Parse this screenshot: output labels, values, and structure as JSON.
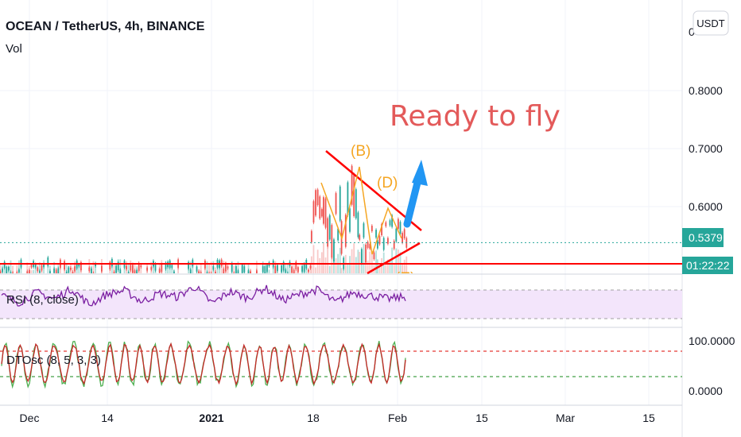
{
  "header": {
    "title": "OCEAN / TetherUS, 4h, BINANCE",
    "volume_label": "Vol",
    "currency_button": "USDT",
    "partial_tick": "0"
  },
  "annotation": {
    "text": "Ready to fly",
    "wave_labels": [
      "(B)",
      "(D)",
      "(E)"
    ]
  },
  "price_tags": {
    "last_price": "0.5379",
    "countdown": "01:22:22",
    "last_price_color": "#26a69a"
  },
  "colors": {
    "candle_up": "#26a69a",
    "candle_down": "#ef5350",
    "trendline": "#ff0000",
    "arrow": "#2196f3",
    "rsi_line": "#7b1fa2",
    "rsi_band": "#f3e5fb",
    "dto_fast": "#4caf50",
    "dto_slow": "#c62828",
    "wave_label": "#f5a623"
  },
  "chart_data": [
    {
      "type": "candlestick",
      "title": "OCEAN / TetherUS, 4h, BINANCE",
      "ylabel": "",
      "y_ticks": [
        "0.8000",
        "0.7000",
        "0.6000"
      ],
      "ylim": [
        0.47,
        0.9
      ],
      "x_ticks": [
        "Dec",
        "14",
        "2021",
        "18",
        "Feb",
        "15",
        "Mar",
        "15"
      ],
      "x_tick_bold": [
        "2021"
      ],
      "segments": [
        {
          "from": "Nov 21",
          "to": "Jan 17",
          "low": 0.47,
          "high": 0.51
        },
        {
          "from": "Jan 17",
          "to": "Jan 19",
          "low": 0.52,
          "high": 0.64
        },
        {
          "from": "Jan 19",
          "to": "Jan 22",
          "low": 0.49,
          "high": 0.66
        },
        {
          "from": "Jan 22",
          "to": "Jan 25",
          "low": 0.48,
          "high": 0.68
        },
        {
          "from": "Jan 25",
          "to": "Jan 28",
          "low": 0.5,
          "high": 0.6
        },
        {
          "from": "Jan 28",
          "to": "Feb 2",
          "low": 0.52,
          "high": 0.59
        }
      ],
      "last_price": 0.5379,
      "horizontal_support": 0.51
    },
    {
      "type": "line",
      "series": [
        {
          "name": "RSI (8, close)",
          "values": [
            55,
            40,
            62,
            48,
            70,
            35,
            58,
            66,
            42,
            60,
            52,
            75,
            38,
            64,
            50,
            72,
            45,
            58,
            68,
            40,
            62,
            55,
            48,
            52
          ]
        }
      ],
      "ylim": [
        0,
        100
      ],
      "band": [
        30,
        70
      ]
    },
    {
      "type": "line",
      "series": [
        {
          "name": "DTOsc (8, 5, 3, 3)",
          "values": [
            10,
            90,
            15,
            85,
            20,
            95,
            10,
            80,
            25,
            90,
            5,
            85,
            20,
            95,
            15,
            80,
            30,
            90,
            10,
            85,
            20,
            75,
            15,
            60,
            20
          ]
        }
      ],
      "y_ticks": [
        "100.0000",
        "0.0000"
      ],
      "ylim": [
        0,
        100
      ],
      "levels": [
        75,
        25
      ]
    }
  ]
}
